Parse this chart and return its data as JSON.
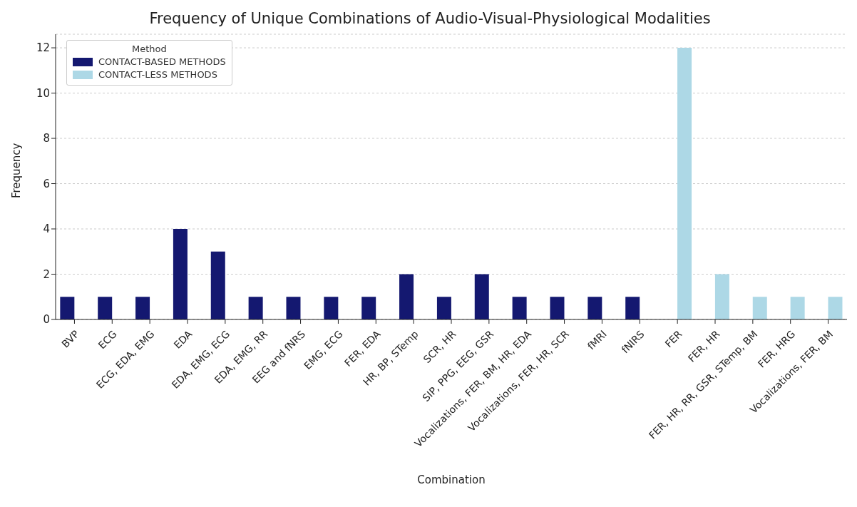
{
  "chart_data": {
    "type": "bar",
    "title": "Frequency of Unique Combinations of Audio-Visual-Physiological Modalities",
    "xlabel": "Combination",
    "ylabel": "Frequency",
    "legend_title": "Method",
    "categories": [
      "BVP",
      "ECG",
      "ECG, EDA, EMG",
      "EDA",
      "EDA, EMG, ECG",
      "EDA, EMG, RR",
      "EEG and fNRS",
      "EMG, ECG",
      "FER, EDA",
      "HR, BP, STemp",
      "SCR, HR",
      "SIP, PPG, EEG, GSR",
      "Vocalizations, FER, BM, HR, EDA",
      "Vocalizations, FER, HR, SCR",
      "fMRI",
      "fNIRS",
      "FER",
      "FER, HR",
      "FER, HR, RR, GSR, STemp, BM",
      "FER, HRG",
      "Vocalizations, FER, BM"
    ],
    "series": [
      {
        "name": "CONTACT-BASED METHODS",
        "color": "#141870",
        "values": [
          1,
          1,
          1,
          4,
          3,
          1,
          1,
          1,
          1,
          2,
          1,
          2,
          1,
          1,
          1,
          1,
          null,
          null,
          null,
          null,
          null
        ]
      },
      {
        "name": "CONTACT-LESS METHODS",
        "color": "#add8e6",
        "values": [
          null,
          null,
          null,
          null,
          null,
          null,
          null,
          null,
          null,
          null,
          null,
          null,
          null,
          null,
          null,
          null,
          12,
          2,
          1,
          1,
          1
        ]
      }
    ],
    "ylim": [
      0,
      12.6
    ],
    "yticks": [
      0,
      2,
      4,
      6,
      8,
      10,
      12
    ],
    "grid": "y",
    "legend": "top left"
  }
}
